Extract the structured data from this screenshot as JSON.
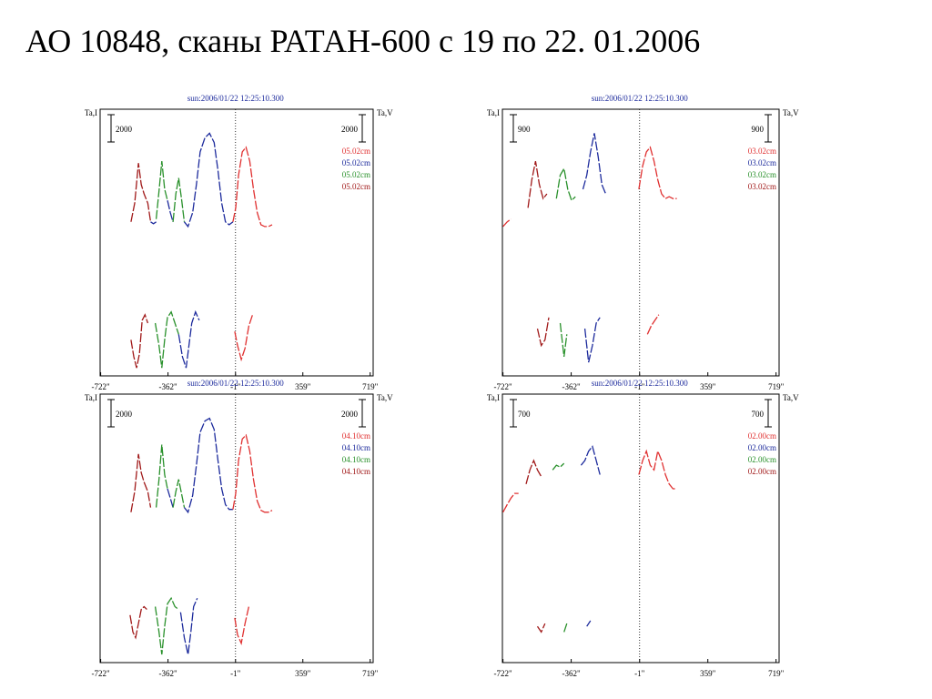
{
  "slide": {
    "title": "АО 10848,  сканы РАТАН-600  с 19 по 22. 01.2006"
  },
  "colors": {
    "red": "#e03030",
    "darkred": "#a01818",
    "blue": "#1c2a9c",
    "green": "#28902a",
    "header": "#1c2a9c"
  },
  "chart_data": [
    {
      "type": "line",
      "header": "sun:2006/01/22 12:25:10.300",
      "ylabel_left": "Ta,I",
      "ylabel_right": "Ta,V",
      "scale_left": "2000",
      "scale_right": "2000",
      "x_ticks": [
        "-722\"",
        "-362\"",
        "-1\"",
        "359\"",
        "719\""
      ],
      "x_tick_values": [
        -722,
        -362,
        -1,
        359,
        719
      ],
      "legend": [
        "05.02cm",
        "05.02cm",
        "05.02cm",
        "05.02cm"
      ],
      "legend_colors": [
        "red",
        "blue",
        "green",
        "darkred"
      ],
      "series": [
        {
          "color": "darkred",
          "part": "I",
          "x": [
            -560,
            -540,
            -520,
            -505,
            -490,
            -470,
            -455
          ],
          "y": [
            0.05,
            0.25,
            0.68,
            0.45,
            0.35,
            0.25,
            0.05
          ]
        },
        {
          "color": "blue",
          "part": "I",
          "x": [
            -455,
            -440,
            -425
          ],
          "y": [
            0.05,
            0.03,
            0.05
          ]
        },
        {
          "color": "green",
          "part": "I",
          "x": [
            -425,
            -410,
            -395,
            -380,
            -365
          ],
          "y": [
            0.08,
            0.38,
            0.7,
            0.4,
            0.28
          ]
        },
        {
          "color": "blue",
          "part": "I",
          "x": [
            -365,
            -350,
            -335
          ],
          "y": [
            0.28,
            0.15,
            0.05
          ]
        },
        {
          "color": "green",
          "part": "I",
          "x": [
            -335,
            -320,
            -305,
            -290,
            -275
          ],
          "y": [
            0.05,
            0.35,
            0.52,
            0.3,
            0.05
          ]
        },
        {
          "color": "blue",
          "part": "I",
          "x": [
            -275,
            -255,
            -230,
            -210,
            -190,
            -165,
            -140,
            -115,
            -95,
            -75,
            -55,
            -35,
            -15
          ],
          "y": [
            0.05,
            0.0,
            0.15,
            0.45,
            0.8,
            0.95,
            1.0,
            0.9,
            0.6,
            0.25,
            0.05,
            0.02,
            0.05
          ]
        },
        {
          "color": "red",
          "part": "I",
          "x": [
            -15,
            0,
            15,
            35,
            55,
            75,
            95,
            115,
            135,
            155,
            175,
            195
          ],
          "y": [
            0.05,
            0.2,
            0.55,
            0.8,
            0.85,
            0.7,
            0.4,
            0.15,
            0.02,
            0.0,
            0.0,
            0.02
          ]
        },
        {
          "color": "darkred",
          "part": "V",
          "x": [
            -560,
            -545,
            -530,
            -515,
            -500,
            -485,
            -470
          ],
          "y": [
            0.5,
            0.2,
            0.0,
            0.25,
            0.85,
            0.95,
            0.8
          ]
        },
        {
          "color": "green",
          "part": "V",
          "x": [
            -430,
            -410,
            -395,
            -380,
            -365,
            -345,
            -325,
            -305
          ],
          "y": [
            0.8,
            0.4,
            0.0,
            0.5,
            0.9,
            1.0,
            0.8,
            0.6
          ]
        },
        {
          "color": "blue",
          "part": "V",
          "x": [
            -305,
            -285,
            -265,
            -250,
            -235,
            -215,
            -195
          ],
          "y": [
            0.6,
            0.2,
            0.0,
            0.4,
            0.8,
            1.0,
            0.85
          ]
        },
        {
          "color": "red",
          "part": "V",
          "x": [
            -5,
            10,
            30,
            50,
            70,
            90
          ],
          "y": [
            0.65,
            0.4,
            0.15,
            0.35,
            0.75,
            0.95
          ]
        }
      ]
    },
    {
      "type": "line",
      "header": "sun:2006/01/22 12:25:10.300",
      "ylabel_left": "Ta,I",
      "ylabel_right": "Ta,V",
      "scale_left": "900",
      "scale_right": "900",
      "x_ticks": [
        "-722\"",
        "-362\"",
        "-1\"",
        "359\"",
        "719\""
      ],
      "x_tick_values": [
        -722,
        -362,
        -1,
        359,
        719
      ],
      "legend": [
        "03.02cm",
        "03.02cm",
        "03.02cm",
        "03.02cm"
      ],
      "legend_colors": [
        "red",
        "blue",
        "green",
        "darkred"
      ],
      "series": [
        {
          "color": "red",
          "part": "I",
          "x": [
            -722,
            -700,
            -680
          ],
          "y": [
            0.0,
            0.05,
            0.08
          ]
        },
        {
          "color": "darkred",
          "part": "I",
          "x": [
            -590,
            -570,
            -550,
            -530,
            -510,
            -490
          ],
          "y": [
            0.2,
            0.5,
            0.7,
            0.45,
            0.3,
            0.35
          ]
        },
        {
          "color": "green",
          "part": "I",
          "x": [
            -440,
            -420,
            -400,
            -380,
            -360,
            -340
          ],
          "y": [
            0.3,
            0.55,
            0.62,
            0.4,
            0.28,
            0.32
          ]
        },
        {
          "color": "blue",
          "part": "I",
          "x": [
            -300,
            -280,
            -260,
            -240,
            -220,
            -200,
            -180
          ],
          "y": [
            0.4,
            0.55,
            0.8,
            1.0,
            0.75,
            0.45,
            0.35
          ]
        },
        {
          "color": "red",
          "part": "I",
          "x": [
            -5,
            15,
            35,
            55,
            75,
            95,
            115,
            135,
            155,
            175,
            195
          ],
          "y": [
            0.4,
            0.65,
            0.8,
            0.85,
            0.7,
            0.5,
            0.35,
            0.3,
            0.32,
            0.3,
            0.3
          ]
        },
        {
          "color": "darkred",
          "part": "V",
          "x": [
            -540,
            -520,
            -500,
            -480
          ],
          "y": [
            0.7,
            0.4,
            0.5,
            0.9
          ]
        },
        {
          "color": "green",
          "part": "V",
          "x": [
            -420,
            -400,
            -385
          ],
          "y": [
            0.8,
            0.2,
            0.6
          ]
        },
        {
          "color": "blue",
          "part": "V",
          "x": [
            -290,
            -270,
            -250,
            -230,
            -210
          ],
          "y": [
            0.7,
            0.1,
            0.4,
            0.8,
            0.9
          ]
        },
        {
          "color": "red",
          "part": "V",
          "x": [
            40,
            60,
            80,
            100
          ],
          "y": [
            0.6,
            0.75,
            0.85,
            0.95
          ]
        }
      ]
    },
    {
      "type": "line",
      "header": "sun:2006/01/22 12:25:10.300",
      "ylabel_left": "Ta,I",
      "ylabel_right": "Ta,V",
      "scale_left": "2000",
      "scale_right": "2000",
      "x_ticks": [
        "-722\"",
        "-362\"",
        "-1\"",
        "359\"",
        "719\""
      ],
      "x_tick_values": [
        -722,
        -362,
        -1,
        359,
        719
      ],
      "legend": [
        "04.10cm",
        "04.10cm",
        "04.10cm",
        "04.10cm"
      ],
      "legend_colors": [
        "red",
        "blue",
        "green",
        "darkred"
      ],
      "series": [
        {
          "color": "darkred",
          "part": "I",
          "x": [
            -560,
            -540,
            -520,
            -505,
            -490,
            -470,
            -455
          ],
          "y": [
            0.0,
            0.22,
            0.62,
            0.42,
            0.32,
            0.22,
            0.05
          ]
        },
        {
          "color": "green",
          "part": "I",
          "x": [
            -425,
            -410,
            -395,
            -380,
            -365
          ],
          "y": [
            0.05,
            0.35,
            0.72,
            0.4,
            0.25
          ]
        },
        {
          "color": "blue",
          "part": "I",
          "x": [
            -365,
            -350,
            -335
          ],
          "y": [
            0.25,
            0.15,
            0.05
          ]
        },
        {
          "color": "green",
          "part": "I",
          "x": [
            -335,
            -320,
            -305,
            -290,
            -275
          ],
          "y": [
            0.05,
            0.22,
            0.35,
            0.2,
            0.05
          ]
        },
        {
          "color": "blue",
          "part": "I",
          "x": [
            -275,
            -255,
            -230,
            -210,
            -190,
            -165,
            -140,
            -115,
            -95,
            -75,
            -55,
            -35,
            -15
          ],
          "y": [
            0.05,
            0.0,
            0.18,
            0.5,
            0.85,
            0.97,
            1.0,
            0.88,
            0.55,
            0.25,
            0.08,
            0.03,
            0.03
          ]
        },
        {
          "color": "red",
          "part": "I",
          "x": [
            -15,
            0,
            15,
            35,
            55,
            75,
            95,
            115,
            135,
            155,
            175,
            195
          ],
          "y": [
            0.03,
            0.2,
            0.55,
            0.78,
            0.82,
            0.65,
            0.35,
            0.12,
            0.02,
            0.0,
            0.0,
            0.02
          ]
        },
        {
          "color": "darkred",
          "part": "V",
          "x": [
            -565,
            -550,
            -535,
            -520,
            -505,
            -490,
            -475
          ],
          "y": [
            0.7,
            0.4,
            0.3,
            0.55,
            0.8,
            0.85,
            0.8
          ]
        },
        {
          "color": "green",
          "part": "V",
          "x": [
            -430,
            -410,
            -395,
            -380,
            -365,
            -345,
            -325,
            -305
          ],
          "y": [
            0.85,
            0.4,
            0.0,
            0.5,
            0.9,
            1.0,
            0.85,
            0.8
          ]
        },
        {
          "color": "blue",
          "part": "V",
          "x": [
            -295,
            -275,
            -255,
            -240,
            -225,
            -205
          ],
          "y": [
            0.75,
            0.3,
            0.0,
            0.4,
            0.85,
            1.0
          ]
        },
        {
          "color": "red",
          "part": "V",
          "x": [
            -5,
            10,
            30,
            50,
            70
          ],
          "y": [
            0.65,
            0.35,
            0.2,
            0.55,
            0.85
          ]
        }
      ]
    },
    {
      "type": "line",
      "header": "sun:2006/01/22 12:25:10.300",
      "ylabel_left": "Ta,I",
      "ylabel_right": "Ta,V",
      "scale_left": "700",
      "scale_right": "700",
      "x_ticks": [
        "-722\"",
        "-362\"",
        "-1\"",
        "359\"",
        "719\""
      ],
      "x_tick_values": [
        -722,
        -362,
        -1,
        359,
        719
      ],
      "legend": [
        "02.00cm",
        "02.00cm",
        "02.00cm",
        "02.00cm"
      ],
      "legend_colors": [
        "red",
        "blue",
        "green",
        "darkred"
      ],
      "series": [
        {
          "color": "red",
          "part": "I",
          "x": [
            -722,
            -700,
            -680,
            -660,
            -640
          ],
          "y": [
            0.0,
            0.08,
            0.15,
            0.2,
            0.2
          ]
        },
        {
          "color": "darkred",
          "part": "I",
          "x": [
            -600,
            -580,
            -560,
            -540,
            -520
          ],
          "y": [
            0.3,
            0.45,
            0.55,
            0.45,
            0.38
          ]
        },
        {
          "color": "green",
          "part": "I",
          "x": [
            -460,
            -440,
            -420,
            -400
          ],
          "y": [
            0.45,
            0.5,
            0.48,
            0.52
          ]
        },
        {
          "color": "blue",
          "part": "I",
          "x": [
            -310,
            -290,
            -270,
            -250,
            -230,
            -210
          ],
          "y": [
            0.5,
            0.55,
            0.65,
            0.7,
            0.55,
            0.4
          ]
        },
        {
          "color": "red",
          "part": "I",
          "x": [
            -5,
            15,
            35,
            55,
            75,
            95,
            115,
            135,
            155,
            175,
            195
          ],
          "y": [
            0.4,
            0.55,
            0.65,
            0.5,
            0.45,
            0.65,
            0.55,
            0.4,
            0.3,
            0.25,
            0.25
          ]
        },
        {
          "color": "darkred",
          "part": "V",
          "x": [
            -540,
            -520,
            -500
          ],
          "y": [
            0.5,
            0.4,
            0.55
          ]
        },
        {
          "color": "green",
          "part": "V",
          "x": [
            -400,
            -385
          ],
          "y": [
            0.4,
            0.55
          ]
        },
        {
          "color": "blue",
          "part": "V",
          "x": [
            -280,
            -260
          ],
          "y": [
            0.5,
            0.6
          ]
        }
      ]
    }
  ]
}
